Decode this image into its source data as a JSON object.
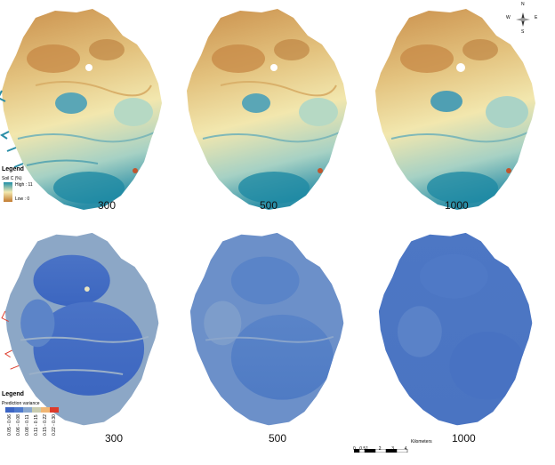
{
  "top_row": {
    "panel_labels": [
      "300",
      "500",
      "1000"
    ],
    "legend": {
      "title": "Legend",
      "subtitle": "Soil C (%)",
      "high_label": "High : 11",
      "low_label": "Low : 0",
      "colors": {
        "high": "#1f8fa8",
        "mid": "#f3e9b0",
        "low": "#c27a2f"
      }
    }
  },
  "bottom_row": {
    "panel_labels": [
      "300",
      "500",
      "1000"
    ],
    "legend": {
      "title": "Legend",
      "subtitle": "Prediction variance",
      "classes": [
        {
          "label": "0.05 - 0.06",
          "color": "#3b64c4"
        },
        {
          "label": "0.06 - 0.08",
          "color": "#4d79cd"
        },
        {
          "label": "0.08 - 0.11",
          "color": "#88a7cf"
        },
        {
          "label": "0.11 - 0.15",
          "color": "#c8ccb0"
        },
        {
          "label": "0.15 - 0.22",
          "color": "#f1b673"
        },
        {
          "label": "0.22 - 0.30",
          "color": "#dd3a2a"
        }
      ]
    }
  },
  "north_arrow": {
    "n": "N",
    "s": "S",
    "e": "E",
    "w": "W"
  },
  "scale_bar": {
    "ticks": [
      "0",
      "0.5",
      "1",
      "2",
      "3",
      "4"
    ],
    "units": "Kilometers"
  }
}
